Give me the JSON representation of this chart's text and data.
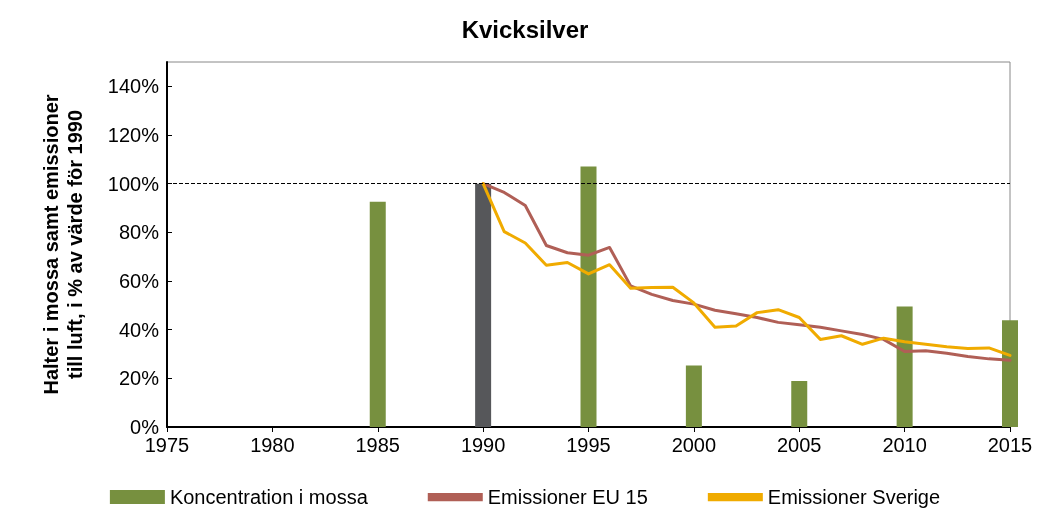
{
  "chart_data": {
    "type": "bar",
    "title": "Kvicksilver",
    "ylabel": "Halter i mossa samt emissioner\ntill luft, i % av värde för 1990",
    "xlim": [
      1975,
      2015
    ],
    "xticks": [
      1975,
      1980,
      1985,
      1990,
      1995,
      2000,
      2005,
      2010,
      2015
    ],
    "ylim": [
      0,
      150
    ],
    "yticks": [
      {
        "value": 0,
        "label": "0%"
      },
      {
        "value": 20,
        "label": "20%"
      },
      {
        "value": 40,
        "label": "40%"
      },
      {
        "value": 60,
        "label": "60%"
      },
      {
        "value": 80,
        "label": "80%"
      },
      {
        "value": 100,
        "label": "100%"
      },
      {
        "value": 120,
        "label": "120%"
      },
      {
        "value": 140,
        "label": "140%"
      }
    ],
    "grid": false,
    "legend": "bottom",
    "marker": "none",
    "line_style": "solid",
    "ref_lines": [
      {
        "axis": "y",
        "value": 100,
        "color": "#000000",
        "line_style": "dashed"
      }
    ],
    "series": [
      {
        "name": "Koncentration i mossa",
        "color": "#77903f",
        "x": [
          1985,
          1990,
          1995,
          2000,
          2005,
          2010,
          2015
        ],
        "values": [
          92.6,
          100,
          107.1,
          25.3,
          18.9,
          49.5,
          43.9
        ],
        "colors": [
          "#77903f",
          "#56575a",
          "#77903f",
          "#77903f",
          "#77903f",
          "#77903f",
          "#77903f"
        ]
      },
      {
        "name": "Emissioner EU 15",
        "type": "line",
        "color": "#b05f56",
        "x": [
          1990,
          1991,
          1992,
          1993,
          1994,
          1995,
          1996,
          1997,
          1998,
          1999,
          2000,
          2001,
          2002,
          2003,
          2004,
          2005,
          2006,
          2007,
          2008,
          2009,
          2010,
          2011,
          2012,
          2013,
          2014,
          2015
        ],
        "values": [
          100,
          96.4,
          91,
          74.6,
          71.6,
          70.6,
          73.8,
          58,
          54.5,
          52,
          50.5,
          48,
          46.5,
          45,
          43,
          42,
          41,
          39.5,
          38,
          36,
          31,
          31.3,
          30.3,
          29,
          28,
          27.4
        ]
      },
      {
        "name": "Emissioner Sverige",
        "type": "line",
        "color": "#f0ab00",
        "x": [
          1990,
          1991,
          1992,
          1993,
          1994,
          1995,
          1996,
          1997,
          1998,
          1999,
          2000,
          2001,
          2002,
          2003,
          2004,
          2005,
          2006,
          2007,
          2008,
          2009,
          2010,
          2011,
          2012,
          2013,
          2014,
          2015
        ],
        "values": [
          100,
          80.3,
          75.6,
          66.5,
          67.6,
          62.9,
          66.7,
          57,
          57.3,
          57.4,
          51,
          41,
          41.5,
          47,
          48.2,
          45,
          36,
          37.5,
          34,
          36.5,
          35,
          34,
          33,
          32.3,
          32.5,
          29.4
        ]
      }
    ]
  }
}
